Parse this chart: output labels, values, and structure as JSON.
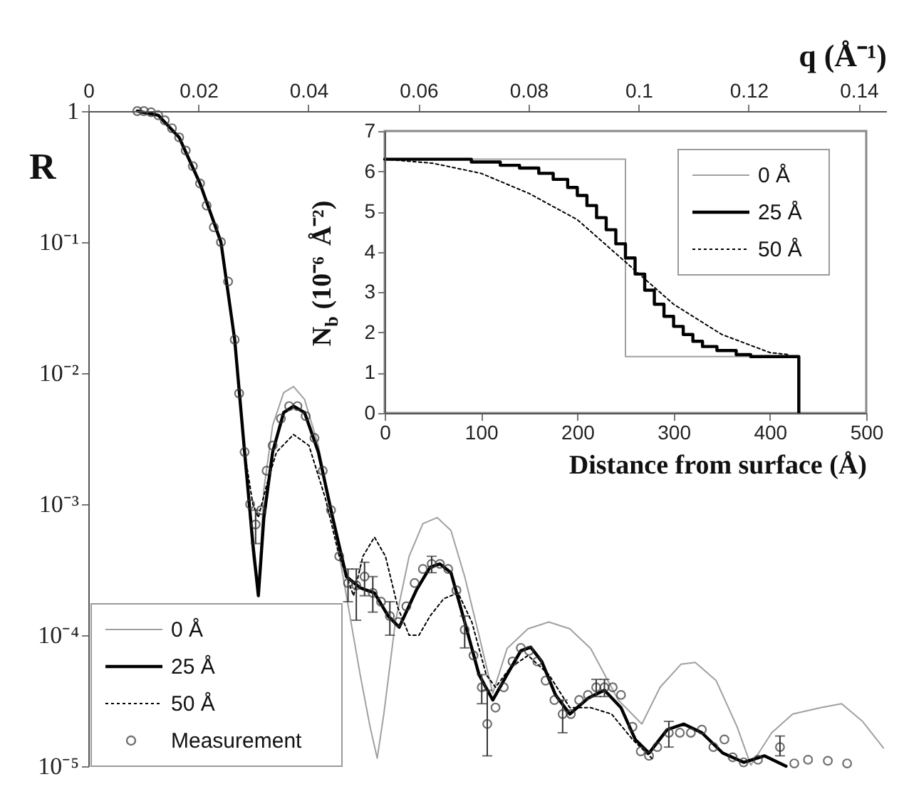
{
  "chart_data": [
    {
      "type": "line",
      "xlabel": "q (Å⁻¹)",
      "ylabel": "R",
      "xlim": [
        0,
        0.145
      ],
      "xticks": [
        0,
        0.02,
        0.04,
        0.06,
        0.08,
        0.1,
        0.12,
        0.14
      ],
      "ylim": [
        1e-05,
        1
      ],
      "yticks": [
        1,
        {
          "value": 0.1,
          "label": "10⁻¹"
        },
        {
          "value": 0.01,
          "label": "10⁻²"
        },
        {
          "value": 0.001,
          "label": "10⁻³"
        },
        {
          "value": 0.0001,
          "label": "10⁻⁴"
        },
        {
          "value": 1e-05,
          "label": "10⁻⁵"
        }
      ],
      "log": "y",
      "legend": "bottom left",
      "series": [
        {
          "name": "0 Å",
          "color": "#a0a0a0",
          "line_style": "solid",
          "x": [
            0.0089,
            0.0127,
            0.0165,
            0.0203,
            0.0241,
            0.0266,
            0.0284,
            0.0299,
            0.0309,
            0.0319,
            0.0335,
            0.0355,
            0.0373,
            0.0393,
            0.0418,
            0.0444,
            0.0469,
            0.0494,
            0.0512,
            0.0525,
            0.0537,
            0.0558,
            0.0583,
            0.0608,
            0.0634,
            0.0659,
            0.0684,
            0.071,
            0.0735,
            0.0761,
            0.0799,
            0.0837,
            0.0875,
            0.0913,
            0.0963,
            0.1006,
            0.1039,
            0.1077,
            0.1103,
            0.1141,
            0.1179,
            0.1204,
            0.1242,
            0.128,
            0.1331,
            0.1369,
            0.1407,
            0.1445
          ],
          "values": [
            1.0,
            0.93,
            0.63,
            0.28,
            0.1,
            0.018,
            0.0025,
            0.0004,
            0.0002,
            0.0013,
            0.004,
            0.0071,
            0.0079,
            0.0063,
            0.0028,
            0.00079,
            0.0002,
            5e-05,
            2e-05,
            1.15e-05,
            2.5e-05,
            0.000126,
            0.0004,
            0.00071,
            0.00079,
            0.00063,
            0.00028,
            0.0001,
            3.6e-05,
            7.9e-05,
            0.000112,
            0.000126,
            0.000112,
            7.9e-05,
            3.2e-05,
            2.1e-05,
            4e-05,
            6e-05,
            6.2e-05,
            4.5e-05,
            2e-05,
            1.02e-05,
            1.8e-05,
            2.5e-05,
            2.8e-05,
            3e-05,
            2.2e-05,
            1.38e-05
          ]
        },
        {
          "name": "25 Å",
          "color": "#000000",
          "line_style": "solid",
          "x": [
            0.0089,
            0.0127,
            0.0165,
            0.0203,
            0.0241,
            0.0266,
            0.0284,
            0.0299,
            0.0309,
            0.0319,
            0.0335,
            0.0355,
            0.0373,
            0.0393,
            0.0418,
            0.0444,
            0.0469,
            0.0494,
            0.052,
            0.0545,
            0.0565,
            0.0596,
            0.0621,
            0.0639,
            0.0659,
            0.0684,
            0.071,
            0.0735,
            0.0761,
            0.0786,
            0.0804,
            0.0824,
            0.0849,
            0.0875,
            0.0908,
            0.0938,
            0.0968,
            0.0994,
            0.1019,
            0.1052,
            0.1082,
            0.1115,
            0.1153,
            0.1191,
            0.1229,
            0.1268
          ],
          "values": [
            1.0,
            0.93,
            0.63,
            0.28,
            0.1,
            0.018,
            0.0025,
            0.0005,
            0.0002,
            0.00079,
            0.0025,
            0.005,
            0.0056,
            0.005,
            0.0025,
            0.00079,
            0.00028,
            0.00023,
            0.00021,
            0.00014,
            0.000115,
            0.00022,
            0.00033,
            0.00035,
            0.0003,
            0.000126,
            5e-05,
            3.2e-05,
            5e-05,
            7.6e-05,
            8.1e-05,
            6.3e-05,
            3.5e-05,
            2.5e-05,
            3.3e-05,
            3.8e-05,
            2.8e-05,
            1.6e-05,
            1.26e-05,
            1.9e-05,
            2.1e-05,
            1.8e-05,
            1.26e-05,
            1.07e-05,
            1.2e-05,
            1e-05
          ]
        },
        {
          "name": "50 Å",
          "color": "#000000",
          "line_style": "dotted",
          "x": [
            0.0089,
            0.0127,
            0.0165,
            0.0203,
            0.0241,
            0.0266,
            0.0284,
            0.0299,
            0.0309,
            0.0324,
            0.0342,
            0.0373,
            0.0401,
            0.0431,
            0.0456,
            0.0482,
            0.0499,
            0.052,
            0.054,
            0.0563,
            0.0583,
            0.0601,
            0.0621,
            0.0646,
            0.0672,
            0.0697,
            0.0723,
            0.074,
            0.0766,
            0.0799,
            0.0837,
            0.0875,
            0.0913,
            0.0951,
            0.0989,
            0.1027
          ],
          "values": [
            1.0,
            0.93,
            0.63,
            0.28,
            0.1,
            0.018,
            0.0025,
            0.001,
            0.00079,
            0.0014,
            0.0025,
            0.0034,
            0.0028,
            0.0011,
            0.0004,
            0.0002,
            0.0004,
            0.00056,
            0.0004,
            0.00016,
            0.0001,
            0.0001,
            0.00014,
            0.00019,
            0.00021,
            0.000126,
            5e-05,
            4e-05,
            5.6e-05,
            7e-05,
            5e-05,
            2.8e-05,
            2.8e-05,
            2.5e-05,
            1.6e-05,
            1.12e-05
          ]
        },
        {
          "name": "Measurement",
          "type": "scatter",
          "marker": "circle",
          "color": "#333333",
          "x": [
            0.0089,
            0.0101,
            0.0114,
            0.0127,
            0.0139,
            0.0152,
            0.0165,
            0.0177,
            0.019,
            0.0203,
            0.0215,
            0.0228,
            0.0241,
            0.0254,
            0.0266,
            0.0274,
            0.0284,
            0.0294,
            0.0304,
            0.0314,
            0.0324,
            0.0335,
            0.035,
            0.0365,
            0.038,
            0.0395,
            0.0411,
            0.0426,
            0.0441,
            0.0456,
            0.0472,
            0.0487,
            0.0502,
            0.0517,
            0.0532,
            0.0548,
            0.0563,
            0.0578,
            0.0593,
            0.0608,
            0.0624,
            0.0639,
            0.0654,
            0.0669,
            0.0684,
            0.07,
            0.0715,
            0.0725,
            0.074,
            0.0755,
            0.0771,
            0.0786,
            0.0801,
            0.0816,
            0.0831,
            0.0847,
            0.0862,
            0.0877,
            0.0892,
            0.0908,
            0.0923,
            0.0938,
            0.0953,
            0.0968,
            0.0989,
            0.1004,
            0.1019,
            0.1034,
            0.1055,
            0.1075,
            0.1095,
            0.1115,
            0.1136,
            0.1156,
            0.1171,
            0.1191,
            0.1217,
            0.1257,
            0.1283,
            0.1308,
            0.1344,
            0.1379
          ],
          "values": [
            1.0,
            1.0,
            0.98,
            0.93,
            0.85,
            0.74,
            0.63,
            0.5,
            0.38,
            0.28,
            0.19,
            0.13,
            0.1,
            0.05,
            0.018,
            0.007,
            0.0025,
            0.001,
            0.0007,
            0.0009,
            0.0018,
            0.0028,
            0.0045,
            0.0056,
            0.0056,
            0.0047,
            0.0032,
            0.0018,
            0.0009,
            0.0004,
            0.00025,
            0.00024,
            0.00028,
            0.00021,
            0.00018,
            0.00014,
            0.000126,
            0.000166,
            0.00025,
            0.00032,
            0.00035,
            0.00035,
            0.00032,
            0.00022,
            0.00011,
            7e-05,
            4e-05,
            2.1e-05,
            2.8e-05,
            4e-05,
            6.3e-05,
            8e-05,
            7.6e-05,
            6.3e-05,
            4.5e-05,
            3.2e-05,
            2.5e-05,
            2.5e-05,
            3.2e-05,
            3.5e-05,
            4e-05,
            4e-05,
            4e-05,
            3.5e-05,
            2e-05,
            1.3e-05,
            1.2e-05,
            1.4e-05,
            1.8e-05,
            1.8e-05,
            1.8e-05,
            1.9e-05,
            1.4e-05,
            1.6e-05,
            1.17e-05,
            1.07e-05,
            1.12e-05,
            1.4e-05,
            1.05e-05,
            1.12e-05,
            1.1e-05,
            1.05e-05
          ],
          "errors": [
            null,
            null,
            null,
            null,
            null,
            null,
            null,
            null,
            null,
            null,
            null,
            null,
            null,
            null,
            null,
            null,
            null,
            null,
            [
              0.0005,
              0.0009
            ],
            null,
            null,
            null,
            null,
            null,
            null,
            null,
            null,
            null,
            null,
            null,
            [
              0.00018,
              0.00032
            ],
            [
              0.00013,
              0.00032
            ],
            [
              0.0002,
              0.00036
            ],
            [
              0.00015,
              0.00028
            ],
            null,
            [
              0.0001,
              0.00018
            ],
            null,
            null,
            null,
            null,
            [
              0.0003,
              0.0004
            ],
            null,
            null,
            null,
            [
              8e-05,
              0.00014
            ],
            null,
            [
              3e-05,
              5e-05
            ],
            [
              1.2e-05,
              3.8e-05
            ],
            null,
            null,
            null,
            null,
            null,
            null,
            null,
            null,
            [
              1.8e-05,
              3.2e-05
            ],
            null,
            null,
            null,
            [
              3.4e-05,
              4.6e-05
            ],
            [
              3.4e-05,
              4.6e-05
            ],
            null,
            null,
            null,
            null,
            null,
            null,
            [
              1.4e-05,
              2.2e-05
            ],
            null,
            null,
            null,
            null,
            null,
            null,
            null,
            null,
            [
              1.2e-05,
              1.7e-05
            ],
            null,
            null,
            null,
            null
          ]
        }
      ]
    },
    {
      "type": "line",
      "xlabel": "Distance from surface (Å)",
      "ylabel": "N$_{b}$ (10⁻⁶ Å⁻²)",
      "xlim": [
        0,
        500
      ],
      "xticks": [
        0,
        100,
        200,
        300,
        400,
        500
      ],
      "ylim": [
        0,
        7
      ],
      "yticks": [
        0,
        1,
        2,
        3,
        4,
        5,
        6,
        7
      ],
      "legend": "top right",
      "series": [
        {
          "name": "0 Å",
          "color": "#a0a0a0",
          "line_style": "solid",
          "x": [
            0,
            250,
            250,
            430
          ],
          "values": [
            6.3,
            6.3,
            1.4,
            1.4
          ]
        },
        {
          "name": "25 Å",
          "type": "step",
          "color": "#000000",
          "line_style": "solid",
          "x": [
            0,
            90,
            120,
            140,
            160,
            175,
            190,
            200,
            210,
            220,
            230,
            240,
            250,
            260,
            270,
            280,
            290,
            300,
            310,
            320,
            330,
            345,
            365,
            380,
            430
          ],
          "values": [
            6.3,
            6.23,
            6.15,
            6.08,
            5.95,
            5.8,
            5.6,
            5.4,
            5.15,
            4.85,
            4.55,
            4.2,
            3.85,
            3.45,
            3.05,
            2.7,
            2.4,
            2.15,
            1.95,
            1.78,
            1.65,
            1.55,
            1.45,
            1.4,
            0
          ]
        },
        {
          "name": "50 Å",
          "color": "#000000",
          "line_style": "dotted",
          "x": [
            0,
            50,
            100,
            150,
            200,
            250,
            300,
            350,
            400,
            420
          ],
          "values": [
            6.3,
            6.2,
            5.95,
            5.45,
            4.8,
            3.75,
            2.7,
            1.95,
            1.5,
            1.45
          ]
        }
      ]
    }
  ]
}
